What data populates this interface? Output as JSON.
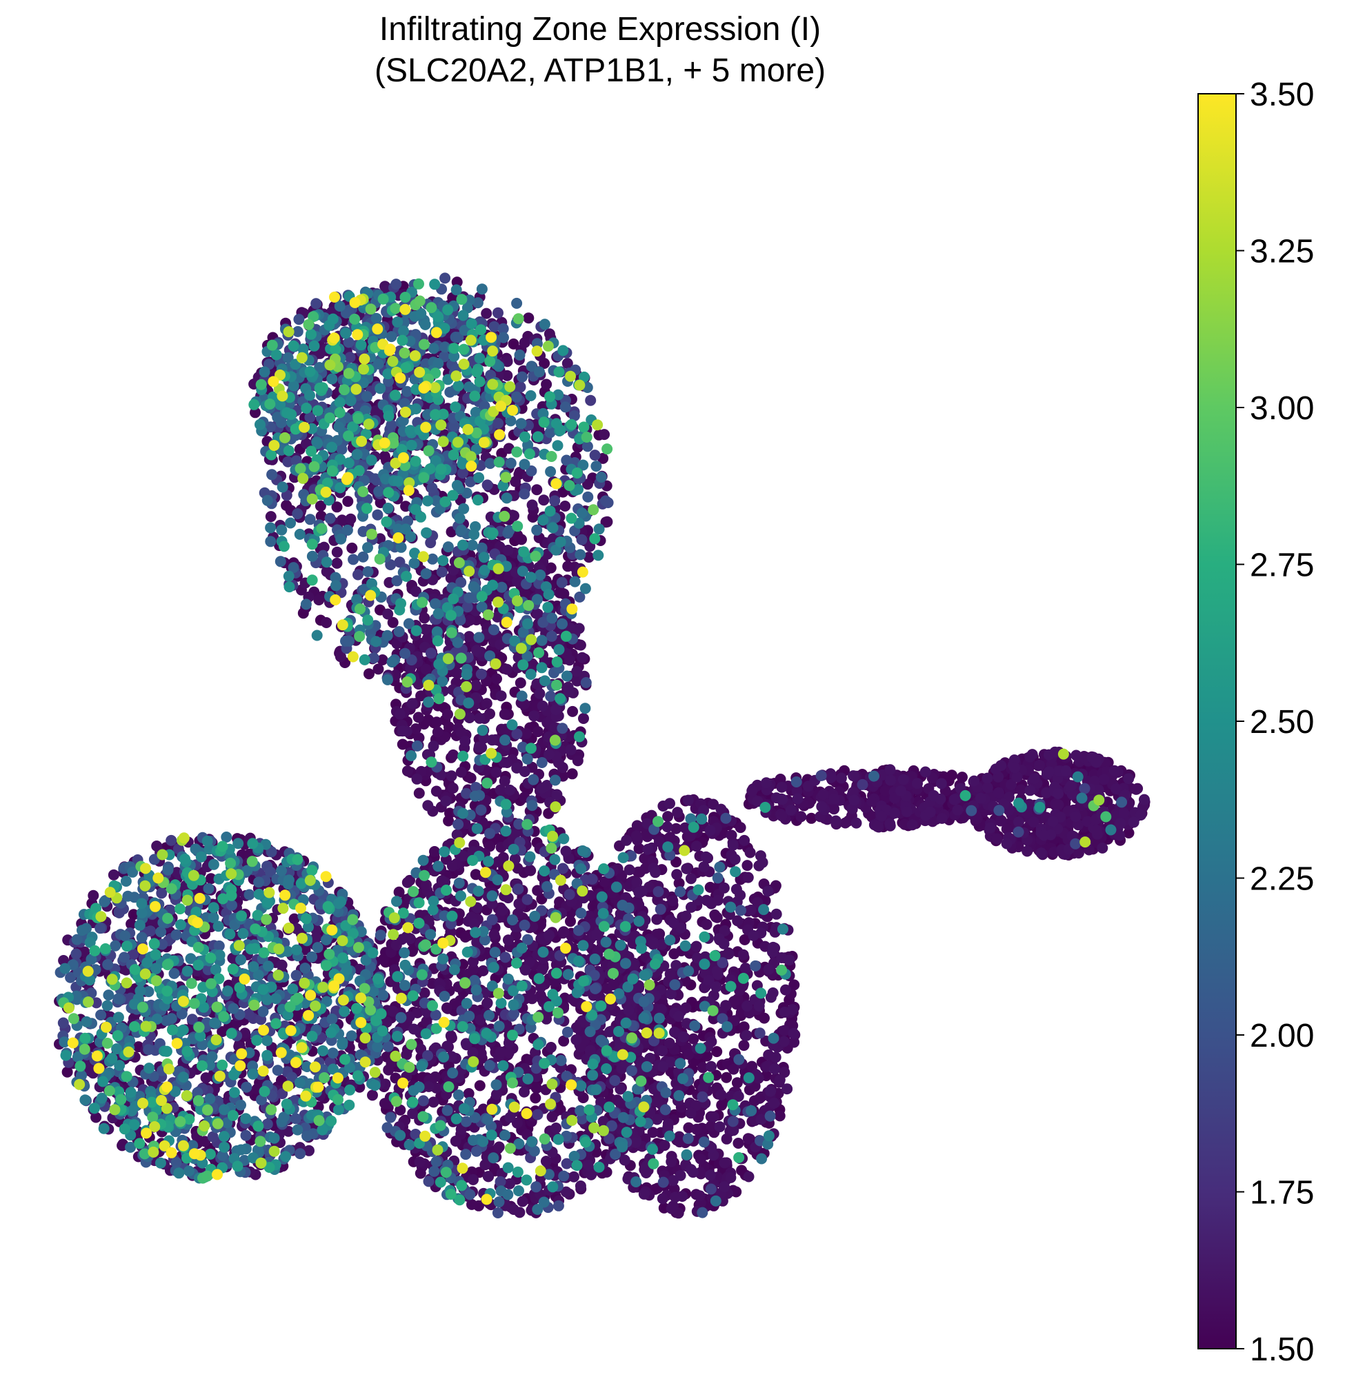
{
  "chart_data": {
    "type": "scatter",
    "title_line1": "Infiltrating Zone Expression (I)",
    "title_line2": "(SLC20A2, ATP1B1, + 5 more)",
    "xlabel": "",
    "ylabel": "",
    "axes_visible": false,
    "grid": false,
    "colormap": "viridis",
    "colorbar": {
      "vmin": 1.5,
      "vmax": 3.5,
      "ticks": [
        1.5,
        1.75,
        2.0,
        2.25,
        2.5,
        2.75,
        3.0,
        3.25,
        3.5
      ],
      "tick_labels": [
        "1.50",
        "1.75",
        "2.00",
        "2.25",
        "2.50",
        "2.75",
        "3.00",
        "3.25",
        "3.50"
      ]
    },
    "regions": [
      {
        "cx": 0.35,
        "cy": 0.3,
        "rx": 0.16,
        "ry": 0.18,
        "n": 1400,
        "high_frac": 0.55
      },
      {
        "cx": 0.3,
        "cy": 0.22,
        "rx": 0.12,
        "ry": 0.09,
        "n": 700,
        "high_frac": 0.7
      },
      {
        "cx": 0.4,
        "cy": 0.48,
        "rx": 0.09,
        "ry": 0.13,
        "n": 700,
        "high_frac": 0.15
      },
      {
        "cx": 0.15,
        "cy": 0.75,
        "rx": 0.15,
        "ry": 0.15,
        "n": 1900,
        "high_frac": 0.6
      },
      {
        "cx": 0.42,
        "cy": 0.76,
        "rx": 0.14,
        "ry": 0.17,
        "n": 1600,
        "high_frac": 0.3
      },
      {
        "cx": 0.58,
        "cy": 0.75,
        "rx": 0.1,
        "ry": 0.18,
        "n": 1100,
        "high_frac": 0.1
      },
      {
        "cx": 0.75,
        "cy": 0.57,
        "rx": 0.12,
        "ry": 0.025,
        "n": 350,
        "high_frac": 0.03
      },
      {
        "cx": 0.92,
        "cy": 0.575,
        "rx": 0.08,
        "ry": 0.045,
        "n": 550,
        "high_frac": 0.05
      }
    ]
  }
}
